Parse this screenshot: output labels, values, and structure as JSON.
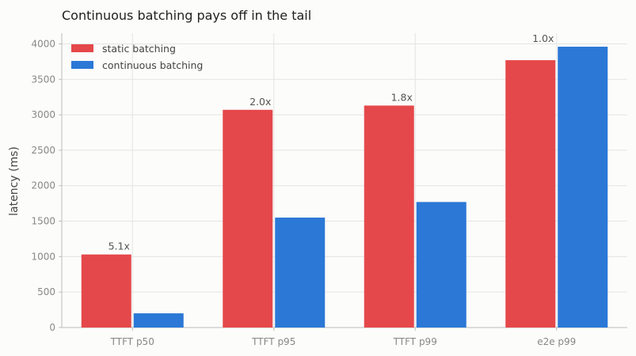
{
  "chart_data": {
    "type": "bar",
    "title": "Continuous batching pays off in the tail",
    "xlabel": "",
    "ylabel": "latency (ms)",
    "categories": [
      "TTFT p50",
      "TTFT p95",
      "TTFT p99",
      "e2e p99"
    ],
    "series": [
      {
        "name": "static batching",
        "color": "#e5484a",
        "values": [
          1030,
          3070,
          3130,
          3770
        ]
      },
      {
        "name": "continuous batching",
        "color": "#2b78d6",
        "values": [
          200,
          1550,
          1770,
          3960
        ]
      }
    ],
    "annotations": [
      "5.1x",
      "2.0x",
      "1.8x",
      "1.0x"
    ],
    "ylim": [
      0,
      4150
    ],
    "yticks": [
      0,
      500,
      1000,
      1500,
      2000,
      2500,
      3000,
      3500,
      4000
    ],
    "grid": true,
    "legend_position": "top-left"
  }
}
